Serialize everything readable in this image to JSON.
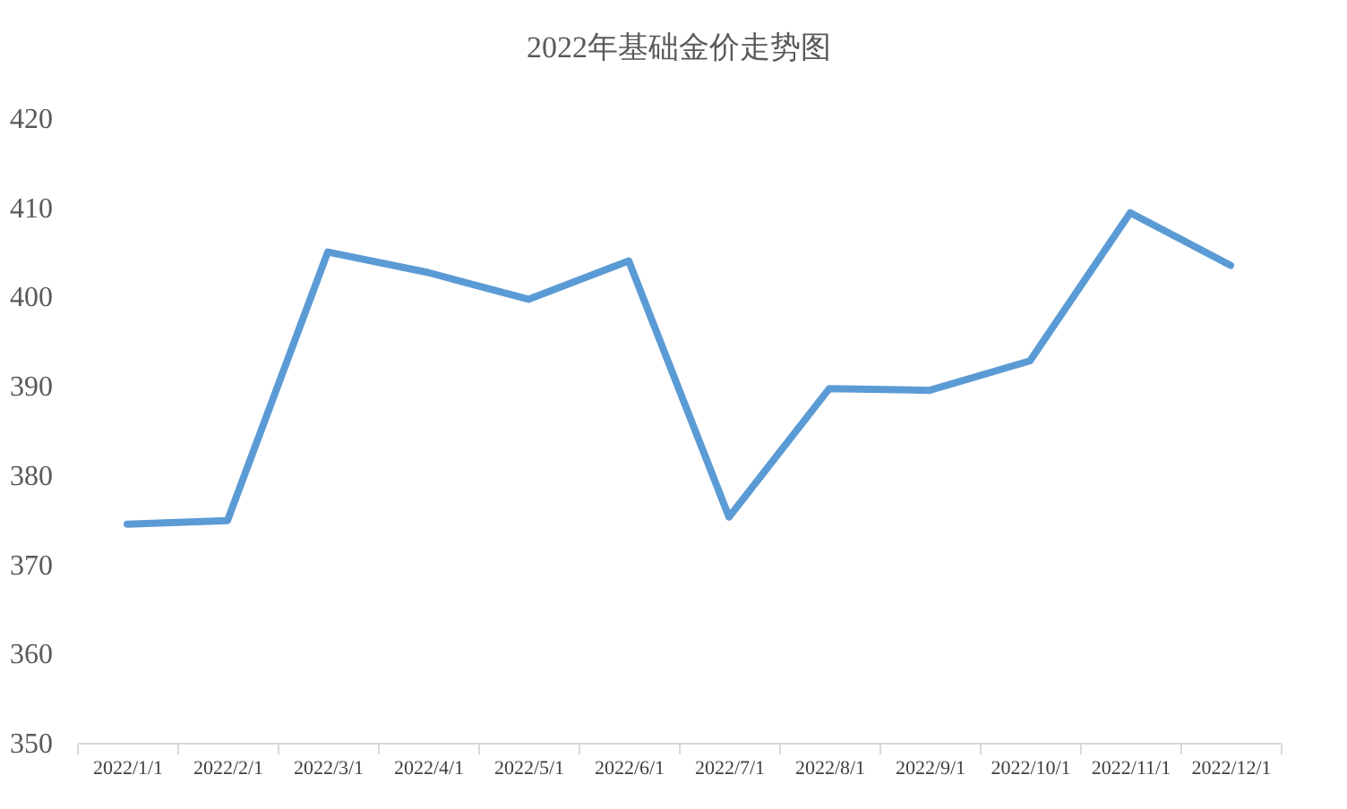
{
  "chart_data": {
    "type": "line",
    "title": "2022年基础金价走势图",
    "categories": [
      "2022/1/1",
      "2022/2/1",
      "2022/3/1",
      "2022/4/1",
      "2022/5/1",
      "2022/6/1",
      "2022/7/1",
      "2022/8/1",
      "2022/9/1",
      "2022/10/1",
      "2022/11/1",
      "2022/12/1"
    ],
    "series": [
      {
        "color": "#5b9bd5",
        "values": [
          374.5,
          374.9,
          405.0,
          402.7,
          399.7,
          404.0,
          375.3,
          389.7,
          389.5,
          392.8,
          409.4,
          403.5
        ]
      }
    ],
    "ylim": [
      350,
      420
    ],
    "yticks": [
      350,
      360,
      370,
      380,
      390,
      400,
      410,
      420
    ],
    "grid": false,
    "marker": "none",
    "line_style": "solid"
  }
}
